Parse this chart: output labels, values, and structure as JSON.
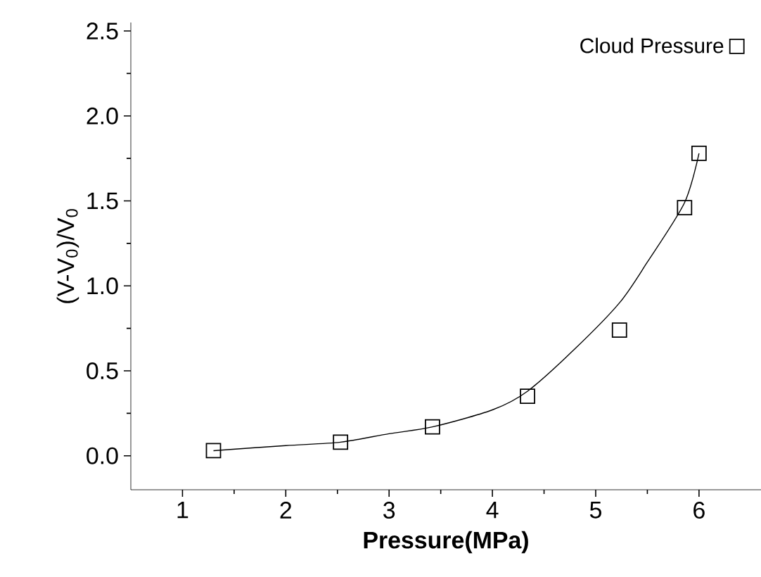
{
  "chart_data": {
    "type": "scatter",
    "xlabel": "Pressure(MPa)",
    "ylabel": "(V-V$_{0}$)/V$_{0}$",
    "xlim": [
      0.5,
      6.6
    ],
    "ylim": [
      -0.2,
      2.55
    ],
    "xticks": [
      1,
      2,
      3,
      4,
      5,
      6
    ],
    "yticks": [
      {
        "value": 0,
        "label": "0.0"
      },
      {
        "value": 0.5,
        "label": "0.5"
      },
      {
        "value": 1,
        "label": "1.0"
      },
      {
        "value": 1.5,
        "label": "1.5"
      },
      {
        "value": 2,
        "label": "2.0"
      },
      {
        "value": 2.5,
        "label": "2.5"
      }
    ],
    "legend": "top right",
    "grid": false,
    "series": [
      {
        "type": "line",
        "marker": "none",
        "color": "#000000",
        "x": [
          1.3,
          2.0,
          2.53,
          3.0,
          3.42,
          4.0,
          4.34,
          4.8,
          5.23,
          5.5,
          5.86,
          6.0
        ],
        "values": [
          0.03,
          0.06,
          0.08,
          0.13,
          0.17,
          0.27,
          0.38,
          0.63,
          0.9,
          1.14,
          1.49,
          1.78
        ]
      },
      {
        "name": "Cloud Pressure",
        "marker": "square",
        "color": "#000000",
        "x": [
          1.3,
          2.53,
          3.42,
          4.34,
          5.23,
          5.86,
          6.0
        ],
        "values": [
          0.03,
          0.08,
          0.17,
          0.35,
          0.74,
          1.46,
          1.78
        ]
      }
    ]
  }
}
